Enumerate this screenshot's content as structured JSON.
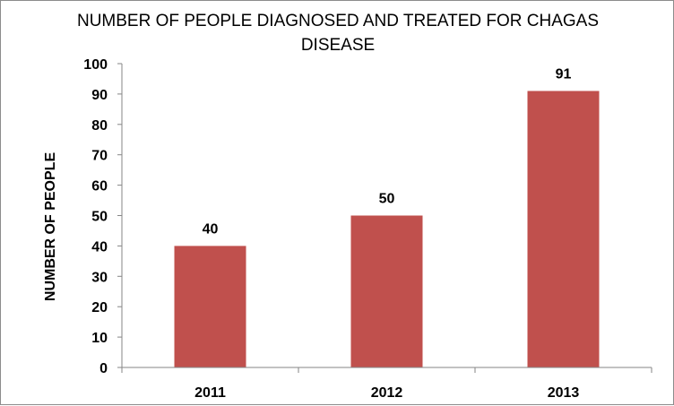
{
  "chart_data": {
    "type": "bar",
    "title_lines": [
      "NUMBER OF PEOPLE DIAGNOSED AND TREATED FOR CHAGAS",
      "DISEASE"
    ],
    "xlabel": "",
    "ylabel": "NUMBER OF PEOPLE",
    "categories": [
      "2011",
      "2012",
      "2013"
    ],
    "series": [
      {
        "values": [
          40,
          50,
          91
        ],
        "color": "#C0504D"
      }
    ],
    "data_labels": [
      "40",
      "50",
      "91"
    ],
    "ylim": [
      0,
      100
    ],
    "yticks": [
      "0",
      "10",
      "20",
      "30",
      "40",
      "50",
      "60",
      "70",
      "80",
      "90",
      "100"
    ],
    "grid": false,
    "legend": "none"
  }
}
